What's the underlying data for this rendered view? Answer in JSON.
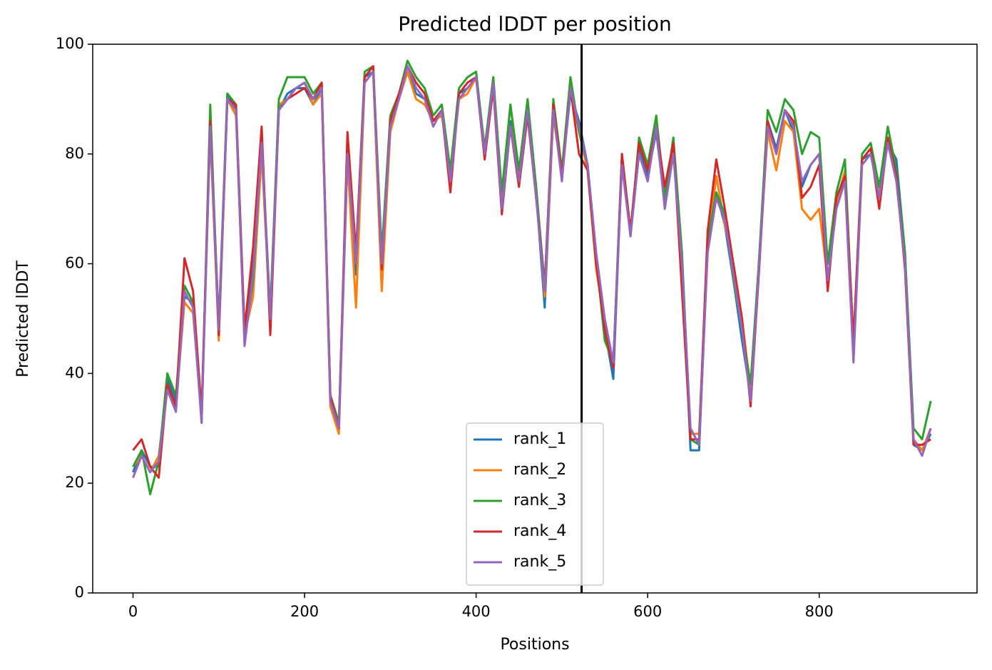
{
  "chart_data": {
    "type": "line",
    "title": "Predicted lDDT per position",
    "xlabel": "Positions",
    "ylabel": "Predicted lDDT",
    "x": [
      0,
      10,
      20,
      30,
      40,
      50,
      60,
      70,
      80,
      90,
      100,
      110,
      120,
      130,
      140,
      150,
      160,
      170,
      180,
      190,
      200,
      210,
      220,
      230,
      240,
      250,
      260,
      270,
      280,
      290,
      300,
      310,
      320,
      330,
      340,
      350,
      360,
      370,
      380,
      390,
      400,
      410,
      420,
      430,
      440,
      450,
      460,
      470,
      480,
      490,
      500,
      510,
      520,
      530,
      540,
      550,
      560,
      570,
      580,
      590,
      600,
      610,
      620,
      630,
      640,
      650,
      660,
      670,
      680,
      690,
      700,
      710,
      720,
      730,
      740,
      750,
      760,
      770,
      780,
      790,
      800,
      810,
      820,
      830,
      840,
      850,
      860,
      870,
      880,
      890,
      900,
      910,
      920,
      930
    ],
    "series": [
      {
        "name": "rank_1",
        "color": "#1f77b4",
        "values": [
          22,
          26,
          23,
          23,
          39,
          35,
          54,
          53,
          32,
          86,
          49,
          91,
          88,
          46,
          60,
          81,
          51,
          88,
          91,
          92,
          92,
          89,
          92,
          36,
          31,
          81,
          58,
          94,
          95,
          56,
          86,
          90,
          95,
          91,
          90,
          86,
          88,
          76,
          91,
          92,
          94,
          81,
          93,
          71,
          86,
          76,
          87,
          73,
          52,
          88,
          76,
          91,
          86,
          78,
          60,
          48,
          39,
          79,
          66,
          81,
          76,
          84,
          71,
          81,
          61,
          26,
          26,
          63,
          73,
          67,
          57,
          46,
          36,
          61,
          86,
          81,
          88,
          84,
          74,
          78,
          80,
          56,
          71,
          76,
          43,
          79,
          80,
          73,
          82,
          79,
          62,
          27,
          26,
          29
        ]
      },
      {
        "name": "rank_2",
        "color": "#ff7f0e",
        "values": [
          23,
          25,
          22,
          25,
          38,
          34,
          53,
          51,
          32,
          84,
          46,
          90,
          87,
          47,
          54,
          80,
          50,
          89,
          90,
          92,
          93,
          89,
          91,
          34,
          29,
          79,
          52,
          93,
          95,
          55,
          84,
          90,
          95,
          90,
          89,
          86,
          87,
          77,
          90,
          91,
          94,
          80,
          94,
          72,
          89,
          76,
          89,
          74,
          54,
          87,
          76,
          92,
          84,
          77,
          59,
          49,
          42,
          78,
          66,
          82,
          77,
          86,
          72,
          82,
          60,
          29,
          29,
          63,
          76,
          67,
          60,
          50,
          37,
          60,
          84,
          77,
          86,
          84,
          70,
          68,
          70,
          57,
          71,
          77,
          43,
          79,
          81,
          73,
          82,
          76,
          61,
          28,
          26,
          30
        ]
      },
      {
        "name": "rank_3",
        "color": "#2ca02c",
        "values": [
          23,
          26,
          18,
          24,
          40,
          36,
          56,
          53,
          31,
          89,
          47,
          91,
          89,
          46,
          57,
          83,
          51,
          90,
          94,
          94,
          94,
          91,
          93,
          36,
          31,
          81,
          61,
          95,
          96,
          62,
          87,
          91,
          97,
          94,
          92,
          87,
          89,
          77,
          92,
          94,
          95,
          81,
          94,
          73,
          89,
          77,
          90,
          74,
          56,
          90,
          77,
          94,
          84,
          78,
          61,
          46,
          42,
          80,
          65,
          83,
          78,
          87,
          72,
          83,
          62,
          28,
          27,
          64,
          73,
          69,
          57,
          48,
          38,
          61,
          88,
          84,
          90,
          88,
          80,
          84,
          83,
          60,
          73,
          79,
          45,
          80,
          82,
          74,
          85,
          77,
          62,
          30,
          28,
          35
        ]
      },
      {
        "name": "rank_4",
        "color": "#d62728",
        "values": [
          26,
          28,
          23,
          21,
          38,
          34,
          61,
          55,
          33,
          86,
          47,
          90,
          89,
          48,
          63,
          85,
          47,
          88,
          90,
          91,
          92,
          90,
          93,
          36,
          30,
          84,
          62,
          94,
          96,
          59,
          86,
          91,
          96,
          93,
          91,
          86,
          88,
          73,
          91,
          93,
          94,
          79,
          92,
          69,
          85,
          74,
          87,
          72,
          56,
          89,
          76,
          92,
          80,
          77,
          60,
          48,
          41,
          80,
          66,
          82,
          77,
          85,
          74,
          82,
          55,
          28,
          28,
          66,
          79,
          70,
          60,
          50,
          34,
          59,
          86,
          80,
          88,
          86,
          72,
          74,
          78,
          55,
          72,
          76,
          46,
          79,
          81,
          70,
          83,
          76,
          59,
          27,
          27,
          28
        ]
      },
      {
        "name": "rank_5",
        "color": "#9467bd",
        "values": [
          21,
          25,
          22,
          24,
          37,
          33,
          55,
          52,
          31,
          85,
          48,
          90,
          88,
          45,
          58,
          82,
          50,
          88,
          90,
          92,
          93,
          90,
          92,
          35,
          30,
          80,
          60,
          93,
          95,
          60,
          85,
          90,
          96,
          92,
          90,
          85,
          88,
          75,
          90,
          92,
          94,
          80,
          93,
          70,
          85,
          75,
          88,
          72,
          55,
          88,
          75,
          92,
          85,
          78,
          62,
          50,
          42,
          78,
          65,
          80,
          75,
          85,
          70,
          80,
          60,
          30,
          27,
          62,
          72,
          68,
          58,
          48,
          35,
          60,
          85,
          80,
          88,
          85,
          75,
          78,
          80,
          57,
          70,
          75,
          42,
          78,
          80,
          72,
          82,
          75,
          60,
          28,
          25,
          30
        ]
      }
    ],
    "vline": 523,
    "vline_color": "#000000",
    "xlim": [
      -47,
      984
    ],
    "ylim": [
      0,
      100
    ],
    "xticks": [
      0,
      200,
      400,
      600,
      800
    ],
    "yticks": [
      0,
      20,
      40,
      60,
      80,
      100
    ],
    "legend": "lower center",
    "grid": false
  }
}
